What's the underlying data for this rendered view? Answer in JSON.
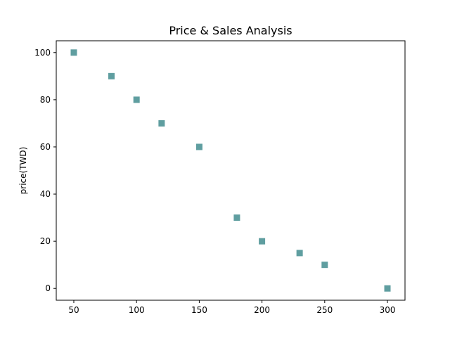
{
  "chart_data": {
    "type": "scatter",
    "title": "Price & Sales Analysis",
    "xlabel": "",
    "ylabel": "price(TWD)",
    "xlim": [
      36,
      314
    ],
    "ylim": [
      -5,
      105
    ],
    "xticks": [
      50,
      100,
      150,
      200,
      250,
      300
    ],
    "yticks": [
      0,
      20,
      40,
      60,
      80,
      100
    ],
    "grid": false,
    "marker": "square",
    "color": "#5f9ea0",
    "series": [
      {
        "x": [
          50,
          80,
          100,
          120,
          150,
          180,
          200,
          230,
          250,
          300
        ],
        "y": [
          100,
          90,
          80,
          70,
          60,
          30,
          20,
          15,
          10,
          0
        ]
      }
    ]
  }
}
